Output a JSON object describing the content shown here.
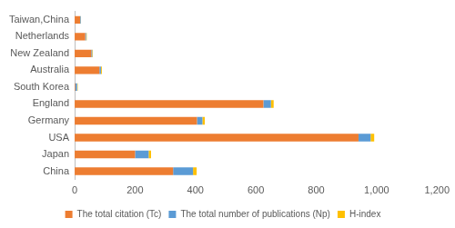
{
  "chart_data": {
    "type": "bar",
    "orientation": "horizontal",
    "stacked": true,
    "categories": [
      "Taiwan,China",
      "Netherlands",
      "New Zealand",
      "Australia",
      "South Korea",
      "England",
      "Germany",
      "USA",
      "Japan",
      "China"
    ],
    "series": [
      {
        "name": "The total citation (Tc)",
        "color": "#ed7d31",
        "values": [
          18,
          35,
          55,
          82,
          2,
          625,
          405,
          940,
          200,
          326
        ]
      },
      {
        "name": "The total number of publications (Np)",
        "color": "#5b9bd5",
        "values": [
          2,
          3,
          3,
          5,
          6,
          25,
          18,
          40,
          45,
          66
        ]
      },
      {
        "name": "H-index",
        "color": "#ffc000",
        "values": [
          1,
          2,
          2,
          3,
          2,
          9,
          8,
          12,
          8,
          12
        ]
      }
    ],
    "xlim": [
      0,
      1200
    ],
    "xticks": [
      0,
      200,
      400,
      600,
      800,
      1000,
      1200
    ],
    "grid": false,
    "legend": "bottom"
  }
}
